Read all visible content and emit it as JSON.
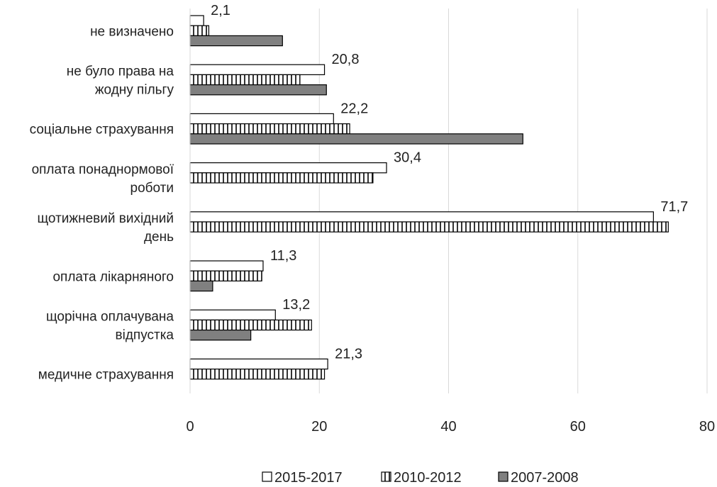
{
  "chart_data": {
    "type": "bar",
    "orientation": "horizontal",
    "categories": [
      [
        "не визначено"
      ],
      [
        "не було права на",
        "жодну пільгу"
      ],
      [
        "соціальне страхування"
      ],
      [
        "оплата понаднормової",
        "роботи"
      ],
      [
        "щотижневий вихідний",
        "день"
      ],
      [
        "оплата лікарняного"
      ],
      [
        "щорічна оплачувана",
        "відпустка"
      ],
      [
        "медичне страхування"
      ]
    ],
    "series": [
      {
        "name": "2015-2017",
        "fill": "white",
        "values": [
          2.1,
          20.8,
          22.2,
          30.4,
          71.7,
          11.3,
          13.2,
          21.3
        ]
      },
      {
        "name": "2010-2012",
        "fill": "vertical-hatch",
        "values": [
          2.9,
          17.0,
          24.7,
          28.3,
          74.0,
          11.1,
          18.8,
          20.8
        ]
      },
      {
        "name": "2007-2008",
        "fill": "gray",
        "values": [
          14.3,
          21.1,
          51.5,
          null,
          null,
          3.5,
          9.4,
          null
        ]
      }
    ],
    "data_labels": [
      {
        "category": 0,
        "series": 0,
        "text": "2,1"
      },
      {
        "category": 1,
        "series": 0,
        "text": "20,8"
      },
      {
        "category": 2,
        "series": 0,
        "text": "22,2"
      },
      {
        "category": 3,
        "series": 0,
        "text": "30,4"
      },
      {
        "category": 4,
        "series": 0,
        "text": "71,7"
      },
      {
        "category": 5,
        "series": 0,
        "text": "11,3"
      },
      {
        "category": 6,
        "series": 0,
        "text": "13,2"
      },
      {
        "category": 7,
        "series": 0,
        "text": "21,3"
      }
    ],
    "xlim": [
      0,
      80
    ],
    "xticks": [
      0,
      20,
      40,
      60,
      80
    ],
    "grid": "vertical",
    "legend": "bottom",
    "colors": {
      "bar_stroke": "#000000",
      "gray_fill": "#808080",
      "grid": "#d9d9d9",
      "text": "#222222"
    }
  }
}
